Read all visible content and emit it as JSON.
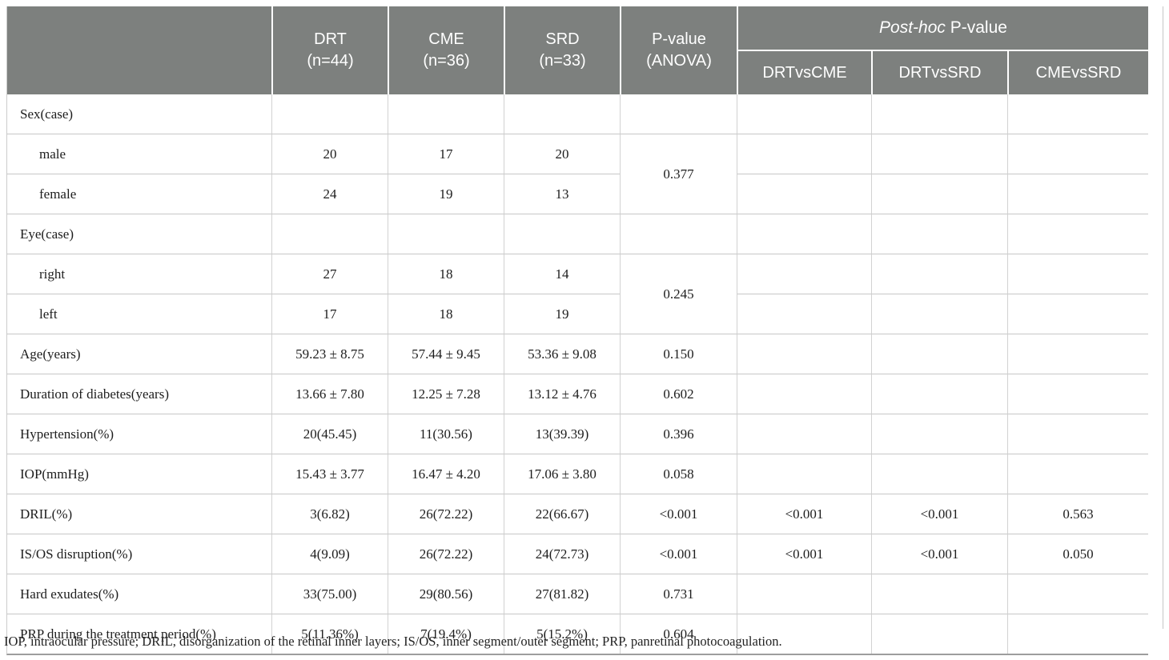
{
  "header": {
    "cols": [
      {
        "line1": "DRT",
        "line2": "(n=44)"
      },
      {
        "line1": "CME",
        "line2": "(n=36)"
      },
      {
        "line1": "SRD",
        "line2": "(n=33)"
      },
      {
        "line1": "P-value",
        "line2": "(ANOVA)"
      }
    ],
    "posthoc": {
      "title_italic": "Post-hoc",
      "title_rest": " P-value",
      "subcols": [
        "DRTvsCME",
        "DRTvsSRD",
        "CMEvsSRD"
      ]
    }
  },
  "rows": [
    {
      "label": "Sex(case)",
      "indent": false,
      "values": [
        "",
        "",
        ""
      ],
      "p": "",
      "p_rowspan": 1,
      "posthoc": [
        "",
        "",
        ""
      ]
    },
    {
      "label": "male",
      "indent": true,
      "values": [
        "20",
        "17",
        "20"
      ],
      "p": "0.377",
      "p_rowspan": 2,
      "posthoc": [
        "",
        "",
        ""
      ]
    },
    {
      "label": "female",
      "indent": true,
      "values": [
        "24",
        "19",
        "13"
      ],
      "p": "",
      "p_rowspan": 0,
      "posthoc": [
        "",
        "",
        ""
      ]
    },
    {
      "label": "Eye(case)",
      "indent": false,
      "values": [
        "",
        "",
        ""
      ],
      "p": "",
      "p_rowspan": 1,
      "posthoc": [
        "",
        "",
        ""
      ]
    },
    {
      "label": "right",
      "indent": true,
      "values": [
        "27",
        "18",
        "14"
      ],
      "p": "0.245",
      "p_rowspan": 2,
      "posthoc": [
        "",
        "",
        ""
      ]
    },
    {
      "label": "left",
      "indent": true,
      "values": [
        "17",
        "18",
        "19"
      ],
      "p": "",
      "p_rowspan": 0,
      "posthoc": [
        "",
        "",
        ""
      ]
    },
    {
      "label": "Age(years)",
      "indent": false,
      "values": [
        "59.23 ± 8.75",
        "57.44 ± 9.45",
        "53.36 ± 9.08"
      ],
      "p": "0.150",
      "p_rowspan": 1,
      "posthoc": [
        "",
        "",
        ""
      ]
    },
    {
      "label": "Duration of diabetes(years)",
      "indent": false,
      "values": [
        "13.66 ± 7.80",
        "12.25 ± 7.28",
        "13.12 ± 4.76"
      ],
      "p": "0.602",
      "p_rowspan": 1,
      "posthoc": [
        "",
        "",
        ""
      ]
    },
    {
      "label": "Hypertension(%)",
      "indent": false,
      "values": [
        "20(45.45)",
        "11(30.56)",
        "13(39.39)"
      ],
      "p": "0.396",
      "p_rowspan": 1,
      "posthoc": [
        "",
        "",
        ""
      ]
    },
    {
      "label": "IOP(mmHg)",
      "indent": false,
      "values": [
        "15.43 ± 3.77",
        "16.47 ± 4.20",
        "17.06 ± 3.80"
      ],
      "p": "0.058",
      "p_rowspan": 1,
      "posthoc": [
        "",
        "",
        ""
      ]
    },
    {
      "label": "DRIL(%)",
      "indent": false,
      "values": [
        "3(6.82)",
        "26(72.22)",
        "22(66.67)"
      ],
      "p": "<0.001",
      "p_rowspan": 1,
      "posthoc": [
        "<0.001",
        "<0.001",
        "0.563"
      ]
    },
    {
      "label": "IS/OS disruption(%)",
      "indent": false,
      "values": [
        "4(9.09)",
        "26(72.22)",
        "24(72.73)"
      ],
      "p": "<0.001",
      "p_rowspan": 1,
      "posthoc": [
        "<0.001",
        "<0.001",
        "0.050"
      ]
    },
    {
      "label": "Hard exudates(%)",
      "indent": false,
      "values": [
        "33(75.00)",
        "29(80.56)",
        "27(81.82)"
      ],
      "p": "0.731",
      "p_rowspan": 1,
      "posthoc": [
        "",
        "",
        ""
      ]
    },
    {
      "label": "PRP during the treatment period(%)",
      "indent": false,
      "values": [
        "5(11.36%)",
        "7(19.4%)",
        "5(15.2%)"
      ],
      "p": "0.604",
      "p_rowspan": 1,
      "posthoc": [
        "",
        "",
        ""
      ]
    }
  ],
  "footnote": "IOP, intraocular pressure; DRIL, disorganization of the retinal inner layers; IS/OS, inner segment/outer segment; PRP, panretinal photocoagulation.",
  "colors": {
    "header_bg": "#7d807e",
    "row_line": "#c6c6c6",
    "col_line": "#d2d2d2",
    "bottom_border": "#9d9d9d",
    "header_text": "#ffffff",
    "body_text": "#1d1d1d"
  }
}
